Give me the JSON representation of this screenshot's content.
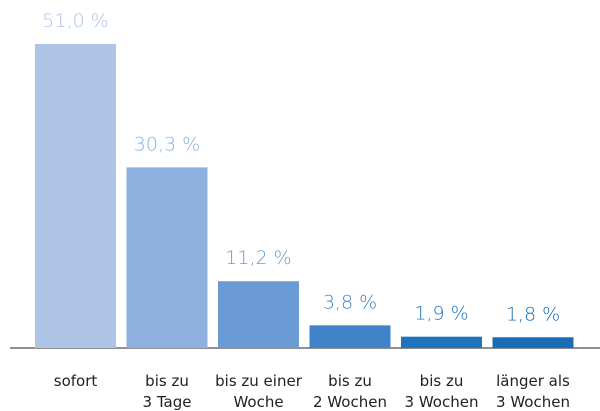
{
  "chart_data": {
    "type": "bar",
    "categories": [
      "sofort",
      "bis zu\n3 Tage",
      "bis zu einer\nWoche",
      "bis zu\n2 Wochen",
      "bis zu\n3 Wochen",
      "länger als\n3 Wochen"
    ],
    "values": [
      51.0,
      30.3,
      11.2,
      3.8,
      1.9,
      1.8
    ],
    "value_labels": [
      "51,0 %",
      "30,3 %",
      "11,2 %",
      "3,8 %",
      "1,9 %",
      "1,8 %"
    ],
    "colors": [
      "#aec4e6",
      "#8db0de",
      "#6a9bd4",
      "#3f84c8",
      "#1f74bf",
      "#1b6cb7"
    ],
    "ylim": [
      0,
      51
    ]
  }
}
